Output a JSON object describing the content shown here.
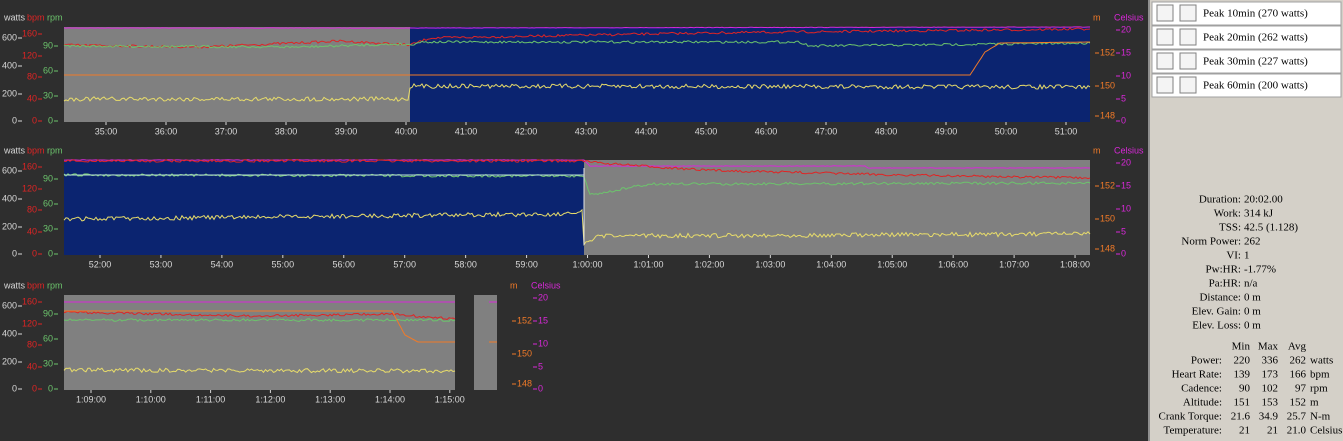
{
  "panels": [
    {
      "labels_left": [
        "watts",
        "bpm",
        "rpm"
      ],
      "labels_right": [
        "m",
        "Celsius"
      ],
      "watts_ticks": [
        600,
        400,
        200,
        0
      ],
      "bpm_ticks": [
        160,
        120,
        80,
        40,
        0
      ],
      "rpm_ticks": [
        90,
        60,
        30,
        0
      ],
      "m_ticks": [
        152,
        150,
        148
      ],
      "celsius_ticks": [
        20,
        15,
        10,
        5,
        0
      ],
      "time_ticks": [
        "35:00",
        "36:00",
        "37:00",
        "38:00",
        "39:00",
        "40:00",
        "41:00",
        "42:00",
        "43:00",
        "44:00",
        "45:00",
        "46:00",
        "47:00",
        "48:00",
        "49:00",
        "50:00",
        "51:00"
      ]
    },
    {
      "labels_left": [
        "watts",
        "bpm",
        "rpm"
      ],
      "labels_right": [
        "m",
        "Celsius"
      ],
      "watts_ticks": [
        600,
        400,
        200,
        0
      ],
      "bpm_ticks": [
        160,
        120,
        80,
        40,
        0
      ],
      "rpm_ticks": [
        90,
        60,
        30,
        0
      ],
      "m_ticks": [
        152,
        150,
        148
      ],
      "celsius_ticks": [
        20,
        15,
        10,
        5,
        0
      ],
      "time_ticks": [
        "52:00",
        "53:00",
        "54:00",
        "55:00",
        "56:00",
        "57:00",
        "58:00",
        "59:00",
        "1:00:00",
        "1:01:00",
        "1:02:00",
        "1:03:00",
        "1:04:00",
        "1:05:00",
        "1:06:00",
        "1:07:00",
        "1:08:00"
      ]
    },
    {
      "labels_left": [
        "watts",
        "bpm",
        "rpm"
      ],
      "labels_right": [
        "m",
        "Celsius"
      ],
      "watts_ticks": [
        600,
        400,
        200,
        0
      ],
      "bpm_ticks": [
        160,
        120,
        80,
        40,
        0
      ],
      "rpm_ticks": [
        90,
        60,
        30,
        0
      ],
      "m_ticks": [
        152,
        150,
        148
      ],
      "celsius_ticks": [
        20,
        15,
        10,
        5,
        0
      ],
      "time_ticks": [
        "1:09:00",
        "1:10:00",
        "1:11:00",
        "1:12:00",
        "1:13:00",
        "1:14:00",
        "1:15:00"
      ]
    }
  ],
  "intervals": [
    "Peak 10min (270 watts)",
    "Peak 20min (262 watts)",
    "Peak 30min (227 watts)",
    "Peak 60min (200 watts)"
  ],
  "summary": [
    {
      "label": "Duration:",
      "value": "20:02.00"
    },
    {
      "label": "Work:",
      "value": "314 kJ"
    },
    {
      "label": "TSS:",
      "value": "42.5 (1.128)"
    },
    {
      "label": "Norm Power:",
      "value": "262"
    },
    {
      "label": "VI:",
      "value": "1"
    },
    {
      "label": "Pw:HR:",
      "value": "-1.77%"
    },
    {
      "label": "Pa:HR:",
      "value": "n/a"
    },
    {
      "label": "Distance:",
      "value": "0 m"
    },
    {
      "label": "Elev. Gain:",
      "value": "0 m"
    },
    {
      "label": "Elev. Loss:",
      "value": "0 m"
    }
  ],
  "table": {
    "header": [
      "Min",
      "Max",
      "Avg"
    ],
    "rows": [
      [
        "Power:",
        "220",
        "336",
        "262",
        "watts"
      ],
      [
        "Heart Rate:",
        "139",
        "173",
        "166",
        "bpm"
      ],
      [
        "Cadence:",
        "90",
        "102",
        "97",
        "rpm"
      ],
      [
        "Altitude:",
        "151",
        "153",
        "152",
        "m"
      ],
      [
        "Crank Torque:",
        "21.6",
        "34.9",
        "25.7",
        "N-m"
      ],
      [
        "Temperature:",
        "21",
        "21",
        "21.0",
        "Celsius"
      ]
    ]
  }
}
